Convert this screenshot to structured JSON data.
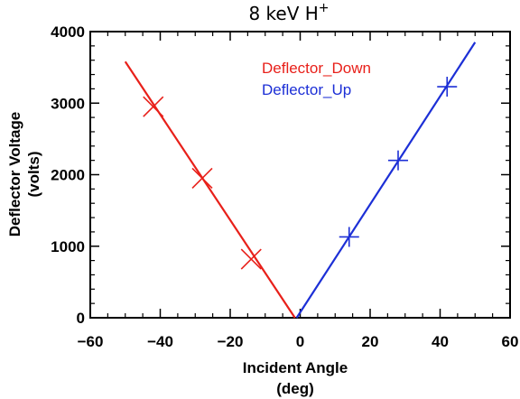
{
  "chart_data": {
    "type": "scatter",
    "title": "8 keV H",
    "title_superscript": "+",
    "xlabel": "Incident Angle",
    "xlabel_unit": "(deg)",
    "ylabel": "Deflector Voltage",
    "ylabel_unit": "(volts)",
    "xlim": [
      -60,
      60
    ],
    "ylim": [
      0,
      4000
    ],
    "x_ticks": [
      -60,
      -40,
      -20,
      0,
      20,
      40,
      60
    ],
    "y_ticks": [
      0,
      1000,
      2000,
      3000,
      4000
    ],
    "grid": false,
    "legend_position": "top-center",
    "series": [
      {
        "name": "Deflector_Down",
        "color": "#e8201a",
        "marker": "x-cross",
        "points": [
          {
            "x": -42,
            "y": 2950
          },
          {
            "x": -28,
            "y": 1950
          },
          {
            "x": -14,
            "y": 820
          }
        ],
        "fit_line": [
          {
            "x": -50,
            "y": 3580
          },
          {
            "x": -1.5,
            "y": 0
          }
        ]
      },
      {
        "name": "Deflector_Up",
        "color": "#1c2fd6",
        "marker": "plus",
        "points": [
          {
            "x": 14,
            "y": 1130
          },
          {
            "x": 28,
            "y": 2200
          },
          {
            "x": 42,
            "y": 3230
          }
        ],
        "fit_line": [
          {
            "x": -1,
            "y": 0
          },
          {
            "x": 50,
            "y": 3850
          }
        ]
      }
    ]
  }
}
